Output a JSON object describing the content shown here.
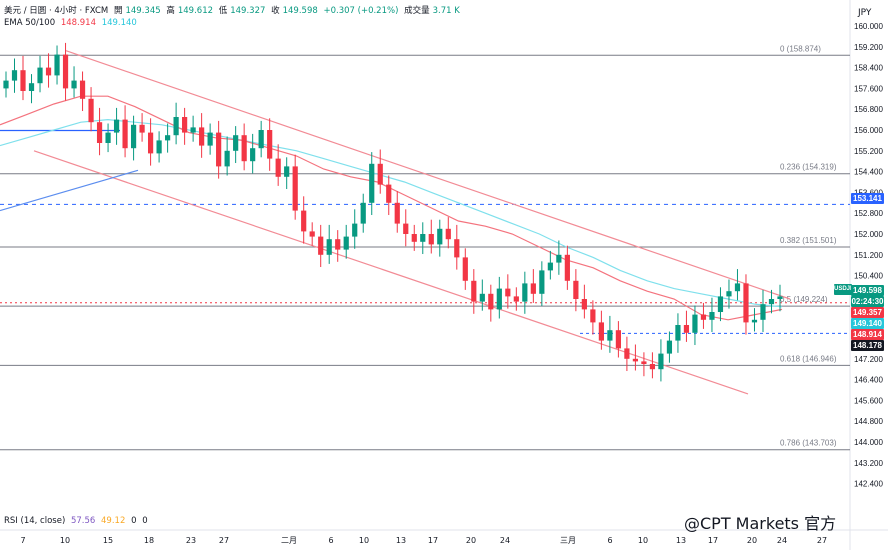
{
  "header": {
    "symbol": "美元 / 日圆 · 4小时 · FXCM",
    "open_label": "開",
    "open": "149.345",
    "high_label": "高",
    "high": "149.612",
    "low_label": "低",
    "low": "149.327",
    "close_label": "收",
    "close": "149.598",
    "change": "+0.307 (+0.21%)",
    "volume_label": "成交量",
    "volume": "3.71 K",
    "ema_label": "EMA 50/100",
    "ema50": "148.914",
    "ema100": "149.140",
    "rsi_label": "RSI (14, close)",
    "rsi1": "57.56",
    "rsi2": "49.12",
    "rsi3": "0",
    "rsi4": "0"
  },
  "currency": "JPY",
  "price_tags": [
    {
      "value": "153.141",
      "color": "#2962ff"
    },
    {
      "value": "USDJPY",
      "color": "#089981"
    },
    {
      "value": "149.598",
      "color": "#089981"
    },
    {
      "value": "02:24:30",
      "color": "#089981"
    },
    {
      "value": "149.357",
      "color": "#f23645"
    },
    {
      "value": "149.140",
      "color": "#26c6da"
    },
    {
      "value": "148.914",
      "color": "#f23645"
    },
    {
      "value": "148.178",
      "color": "#131722"
    }
  ],
  "watermark": "@CPT Markets 官方",
  "chart_data": {
    "type": "candlestick",
    "y_axis": {
      "min": 142.0,
      "max": 160.0,
      "step": 0.8,
      "unit": "JPY"
    },
    "y_ticks": [
      "160.000",
      "159.200",
      "158.400",
      "157.600",
      "156.800",
      "156.000",
      "155.200",
      "154.400",
      "153.600",
      "152.800",
      "152.000",
      "151.200",
      "150.400",
      "149.600",
      "148.800",
      "148.000",
      "147.200",
      "146.400",
      "145.600",
      "144.800",
      "144.000",
      "143.200",
      "142.400"
    ],
    "x_ticks": [
      "7",
      "10",
      "15",
      "18",
      "23",
      "27",
      "二月",
      "6",
      "10",
      "13",
      "17",
      "20",
      "24",
      "三月",
      "6",
      "10",
      "13",
      "17",
      "20",
      "24",
      "27"
    ],
    "fib_levels": [
      {
        "label": "0 (158.874)",
        "value": 158.874
      },
      {
        "label": "0.236 (154.319)",
        "value": 154.319
      },
      {
        "label": "0.382 (151.501)",
        "value": 151.501
      },
      {
        "label": "0.5 (149.224)",
        "value": 149.224
      },
      {
        "label": "0.618 (146.946)",
        "value": 146.946
      },
      {
        "label": "0.786 (143.703)",
        "value": 143.703
      }
    ],
    "horizontal_lines": [
      153.141,
      148.178
    ],
    "series": [
      {
        "name": "USDJPY 4H",
        "values": [
          157.9,
          158.3,
          157.5,
          157.8,
          158.4,
          158.1,
          158.9,
          157.6,
          157.9,
          157.2,
          156.3,
          155.5,
          155.9,
          156.4,
          155.3,
          156.2,
          155.9,
          155.1,
          155.6,
          155.8,
          156.5,
          155.9,
          156.1,
          155.4,
          155.9,
          154.6,
          155.2,
          155.8,
          154.8,
          155.3,
          156.0,
          154.9,
          154.2,
          154.6,
          152.9,
          152.1,
          151.9,
          151.2,
          151.8,
          151.4,
          151.9,
          152.4,
          153.2,
          154.7,
          153.9,
          153.2,
          152.4,
          152.0,
          151.7,
          152.0,
          151.6,
          152.2,
          151.8,
          151.1,
          150.2,
          149.4,
          149.7,
          149.1,
          149.9,
          149.6,
          149.4,
          150.1,
          149.7,
          150.6,
          150.9,
          151.2,
          150.2,
          149.5,
          149.1,
          148.6,
          147.9,
          148.3,
          147.6,
          147.2,
          147.1,
          147.0,
          146.8,
          147.4,
          147.9,
          148.5,
          148.2,
          148.9,
          148.7,
          149.0,
          149.6,
          149.8,
          150.1,
          148.6,
          148.7,
          149.3,
          149.5,
          149.6
        ]
      },
      {
        "name": "EMA 50",
        "values": [
          156.2,
          156.6,
          157.0,
          157.3,
          157.3,
          156.9,
          156.4,
          155.9,
          155.7,
          155.6,
          155.3,
          155.0,
          154.5,
          154.2,
          154.0,
          153.5,
          153.0,
          152.5,
          152.3,
          152.0,
          151.5,
          151.0,
          150.7,
          150.2,
          149.8,
          149.5,
          148.9,
          148.7,
          148.9,
          149.1
        ]
      },
      {
        "name": "EMA 100",
        "values": [
          155.4,
          155.7,
          156.0,
          156.3,
          156.4,
          156.3,
          156.2,
          156.0,
          155.8,
          155.6,
          155.4,
          155.2,
          154.9,
          154.6,
          154.3,
          154.0,
          153.6,
          153.2,
          152.8,
          152.4,
          152.0,
          151.5,
          151.1,
          150.6,
          150.2,
          149.9,
          149.7,
          149.5,
          149.3,
          149.2
        ]
      }
    ]
  }
}
